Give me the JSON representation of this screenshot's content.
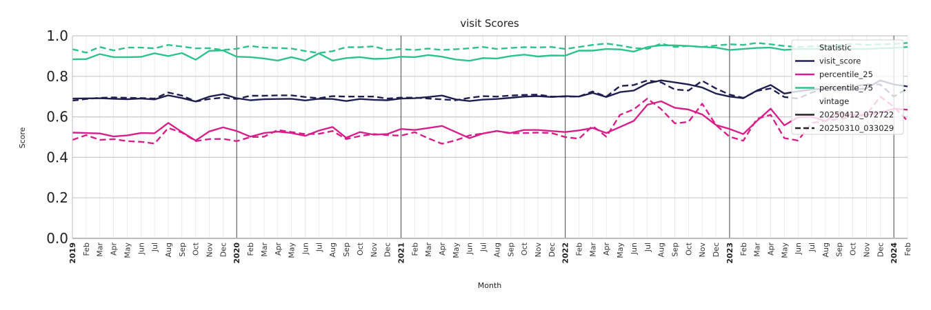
{
  "chart_data": {
    "type": "line",
    "title": "visit Scores",
    "xlabel": "Month",
    "ylabel": "Score",
    "ylim": [
      0,
      1
    ],
    "yticks": [
      "0.0",
      "0.2",
      "0.4",
      "0.6",
      "0.8",
      "1.0"
    ],
    "grid": true,
    "legend_position": "top-right",
    "x_start": "2019-01",
    "x_end": "2024-02",
    "month_ticks": [
      "Feb",
      "Mar",
      "Apr",
      "May",
      "Jun",
      "Jul",
      "Aug",
      "Sep",
      "Oct",
      "Nov",
      "Dec"
    ],
    "year_ticks": [
      "2019",
      "2020",
      "2021",
      "2022",
      "2023",
      "2024"
    ],
    "legend": {
      "statistic_title": "Statistic",
      "vintage_title": "vintage",
      "statistics": [
        {
          "name": "visit_score",
          "color": "#1f1f4f"
        },
        {
          "name": "percentile_25",
          "color": "#d61f8a"
        },
        {
          "name": "percentile_75",
          "color": "#2dc28c"
        }
      ],
      "vintages": [
        {
          "name": "20250412_072722",
          "dash": "solid"
        },
        {
          "name": "20250310_033029",
          "dash": "dashed"
        }
      ]
    },
    "series": [
      {
        "statistic": "visit_score",
        "vintage": "20250412_072722",
        "color": "#1f1f4f",
        "dashed": false,
        "truncated_at": null,
        "values": [
          0.69,
          0.691,
          0.692,
          0.689,
          0.687,
          0.69,
          0.686,
          0.706,
          0.693,
          0.676,
          0.7,
          0.712,
          0.692,
          0.682,
          0.687,
          0.688,
          0.689,
          0.681,
          0.689,
          0.688,
          0.678,
          0.688,
          0.684,
          0.682,
          0.69,
          0.692,
          0.698,
          0.705,
          0.686,
          0.678,
          0.685,
          0.688,
          0.694,
          0.7,
          0.702,
          0.698,
          0.702,
          0.7,
          0.718,
          0.698,
          0.722,
          0.73,
          0.765,
          0.78,
          0.77,
          0.76,
          0.745,
          0.715,
          0.7,
          0.692,
          0.73,
          0.757,
          0.715,
          0.726,
          0.735,
          0.74,
          0.74,
          0.735,
          0.74,
          0.78,
          0.76,
          0.75
        ]
      },
      {
        "statistic": "visit_score",
        "vintage": "20250310_033029",
        "color": "#1f1f4f",
        "dashed": true,
        "truncated_at": null,
        "values": [
          0.68,
          0.688,
          0.694,
          0.696,
          0.694,
          0.693,
          0.69,
          0.72,
          0.705,
          0.676,
          0.688,
          0.695,
          0.688,
          0.704,
          0.704,
          0.706,
          0.706,
          0.698,
          0.692,
          0.702,
          0.7,
          0.7,
          0.7,
          0.69,
          0.695,
          0.695,
          0.69,
          0.686,
          0.682,
          0.694,
          0.702,
          0.7,
          0.705,
          0.708,
          0.71,
          0.7,
          0.7,
          0.7,
          0.725,
          0.7,
          0.752,
          0.757,
          0.78,
          0.77,
          0.735,
          0.73,
          0.778,
          0.74,
          0.71,
          0.694,
          0.728,
          0.74,
          0.698,
          0.69,
          0.72,
          0.74,
          0.745,
          0.75,
          0.76,
          0.76,
          0.7,
          0.74
        ]
      },
      {
        "statistic": "percentile_25",
        "vintage": "20250412_072722",
        "color": "#d61f8a",
        "dashed": false,
        "truncated_at": null,
        "values": [
          0.522,
          0.52,
          0.518,
          0.503,
          0.508,
          0.52,
          0.519,
          0.57,
          0.525,
          0.483,
          0.528,
          0.548,
          0.53,
          0.502,
          0.52,
          0.527,
          0.52,
          0.506,
          0.532,
          0.55,
          0.497,
          0.525,
          0.512,
          0.515,
          0.54,
          0.535,
          0.545,
          0.555,
          0.525,
          0.495,
          0.518,
          0.53,
          0.52,
          0.535,
          0.535,
          0.53,
          0.525,
          0.533,
          0.545,
          0.52,
          0.55,
          0.58,
          0.66,
          0.677,
          0.645,
          0.636,
          0.612,
          0.56,
          0.54,
          0.515,
          0.58,
          0.64,
          0.558,
          0.598,
          0.6,
          0.58,
          0.62,
          0.61,
          0.61,
          0.62,
          0.64,
          0.635
        ]
      },
      {
        "statistic": "percentile_25",
        "vintage": "20250310_033029",
        "color": "#d61f8a",
        "dashed": true,
        "truncated_at": null,
        "values": [
          0.486,
          0.51,
          0.486,
          0.49,
          0.48,
          0.477,
          0.468,
          0.545,
          0.522,
          0.48,
          0.49,
          0.491,
          0.48,
          0.5,
          0.502,
          0.535,
          0.525,
          0.515,
          0.516,
          0.53,
          0.49,
          0.505,
          0.515,
          0.51,
          0.507,
          0.524,
          0.494,
          0.467,
          0.484,
          0.508,
          0.518,
          0.53,
          0.518,
          0.52,
          0.522,
          0.52,
          0.5,
          0.492,
          0.555,
          0.502,
          0.61,
          0.637,
          0.69,
          0.638,
          0.568,
          0.575,
          0.665,
          0.56,
          0.502,
          0.482,
          0.59,
          0.61,
          0.495,
          0.483,
          0.57,
          0.58,
          0.59,
          0.6,
          0.61,
          0.7,
          0.65,
          0.58
        ]
      },
      {
        "statistic": "percentile_75",
        "vintage": "20250412_072722",
        "color": "#2dc28c",
        "dashed": false,
        "truncated_at": null,
        "values": [
          0.884,
          0.885,
          0.91,
          0.895,
          0.895,
          0.896,
          0.914,
          0.9,
          0.915,
          0.882,
          0.926,
          0.928,
          0.897,
          0.895,
          0.888,
          0.878,
          0.895,
          0.878,
          0.913,
          0.878,
          0.89,
          0.895,
          0.886,
          0.888,
          0.897,
          0.895,
          0.905,
          0.897,
          0.883,
          0.877,
          0.89,
          0.888,
          0.9,
          0.907,
          0.898,
          0.903,
          0.902,
          0.927,
          0.927,
          0.935,
          0.933,
          0.922,
          0.945,
          0.953,
          0.953,
          0.95,
          0.945,
          0.942,
          0.93,
          0.935,
          0.94,
          0.942,
          0.93,
          0.935,
          0.935,
          0.935,
          0.94,
          0.935,
          0.935,
          0.938,
          0.94,
          0.945
        ]
      },
      {
        "statistic": "percentile_75",
        "vintage": "20250310_033029",
        "color": "#2dc28c",
        "dashed": true,
        "truncated_at": null,
        "values": [
          0.934,
          0.917,
          0.945,
          0.928,
          0.942,
          0.942,
          0.938,
          0.955,
          0.947,
          0.938,
          0.939,
          0.93,
          0.936,
          0.95,
          0.942,
          0.94,
          0.937,
          0.925,
          0.915,
          0.924,
          0.944,
          0.944,
          0.948,
          0.93,
          0.935,
          0.93,
          0.937,
          0.93,
          0.934,
          0.938,
          0.945,
          0.935,
          0.94,
          0.944,
          0.943,
          0.945,
          0.935,
          0.945,
          0.955,
          0.962,
          0.952,
          0.94,
          0.935,
          0.962,
          0.945,
          0.95,
          0.945,
          0.952,
          0.958,
          0.955,
          0.965,
          0.958,
          0.95,
          0.945,
          0.948,
          0.95,
          0.955,
          0.96,
          0.955,
          0.958,
          0.96,
          0.965
        ]
      }
    ]
  }
}
